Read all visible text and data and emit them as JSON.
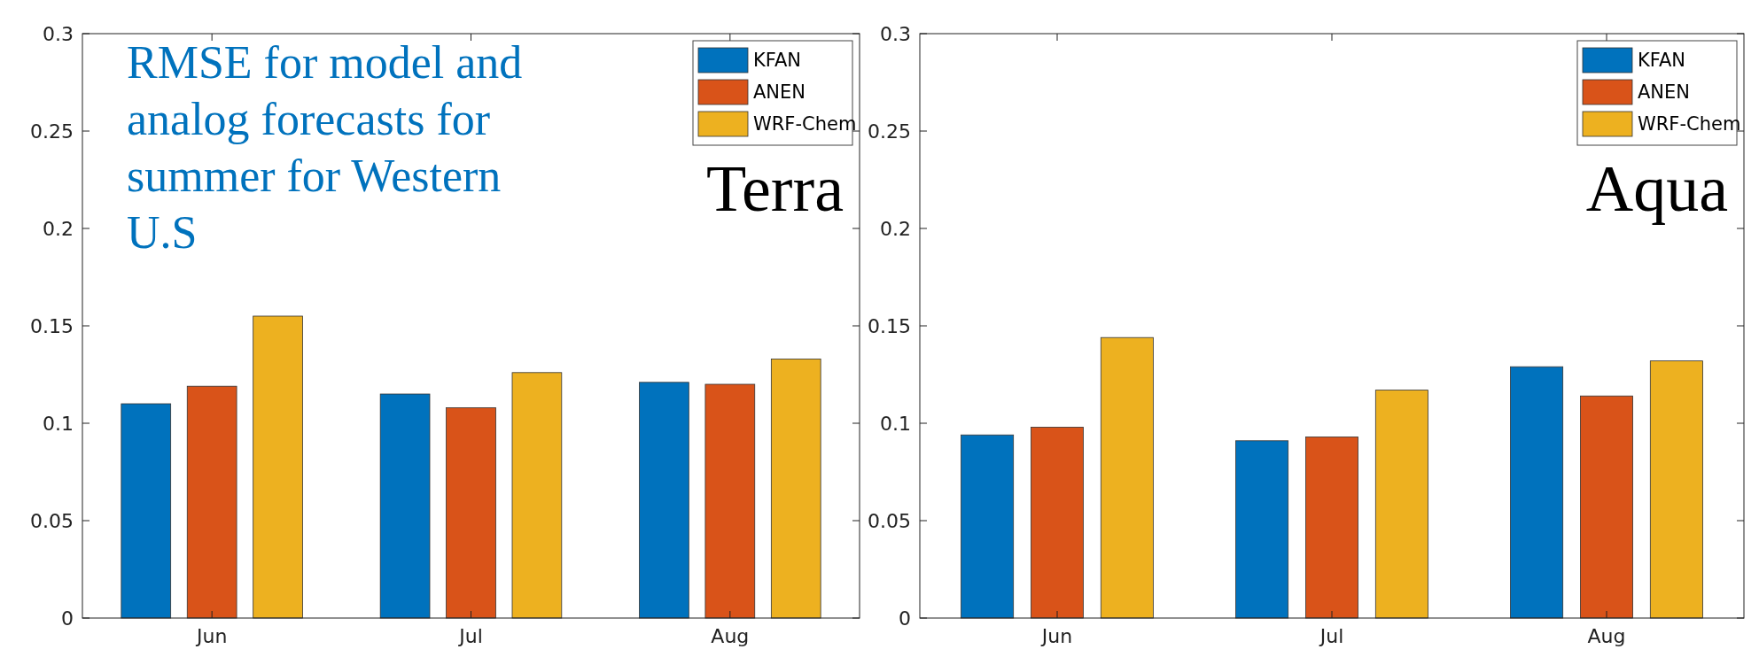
{
  "chart_data": [
    {
      "type": "bar",
      "title": "Terra",
      "annotations": [
        "RMSE for model and analog forecasts for summer for Western U.S"
      ],
      "categories": [
        "Jun",
        "Jul",
        "Aug"
      ],
      "series": [
        {
          "name": "KFAN",
          "color": "#0072bd",
          "values": [
            0.11,
            0.115,
            0.121
          ]
        },
        {
          "name": "ANEN",
          "color": "#d95319",
          "values": [
            0.119,
            0.108,
            0.12
          ]
        },
        {
          "name": "WRF-Chem",
          "color": "#edb120",
          "values": [
            0.155,
            0.126,
            0.133
          ]
        }
      ],
      "ylim": [
        0,
        0.3
      ],
      "yticks": [
        0,
        0.05,
        0.1,
        0.15,
        0.2,
        0.25,
        0.3
      ],
      "grid": false,
      "legend": "top right"
    },
    {
      "type": "bar",
      "title": "Aqua",
      "categories": [
        "Jun",
        "Jul",
        "Aug"
      ],
      "series": [
        {
          "name": "KFAN",
          "color": "#0072bd",
          "values": [
            0.094,
            0.091,
            0.129
          ]
        },
        {
          "name": "ANEN",
          "color": "#d95319",
          "values": [
            0.098,
            0.093,
            0.114
          ]
        },
        {
          "name": "WRF-Chem",
          "color": "#edb120",
          "values": [
            0.144,
            0.117,
            0.132
          ]
        }
      ],
      "ylim": [
        0,
        0.3
      ],
      "yticks": [
        0,
        0.05,
        0.1,
        0.15,
        0.2,
        0.25,
        0.3
      ],
      "grid": false,
      "legend": "top right"
    }
  ]
}
